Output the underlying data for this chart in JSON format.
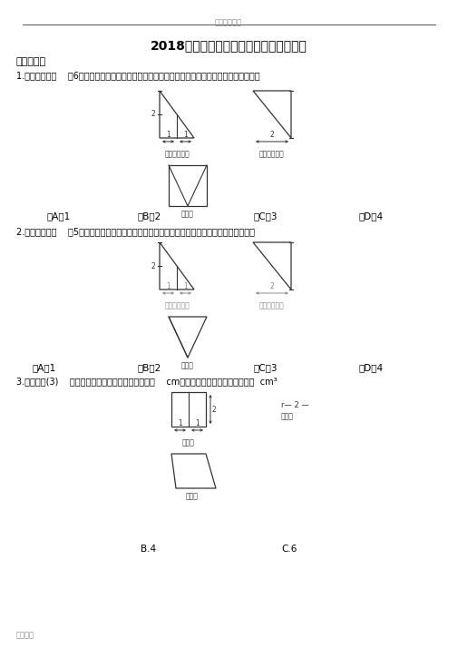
{
  "title": "2018年高考数学试题分类汇编之立体几何",
  "header_text": "实用标准文案",
  "footer_text": "精彩文档",
  "section1": "一、选择题",
  "bg_color": "#ffffff",
  "text_color": "#000000",
  "gray_color": "#aaaaaa",
  "dark_color": "#333333"
}
